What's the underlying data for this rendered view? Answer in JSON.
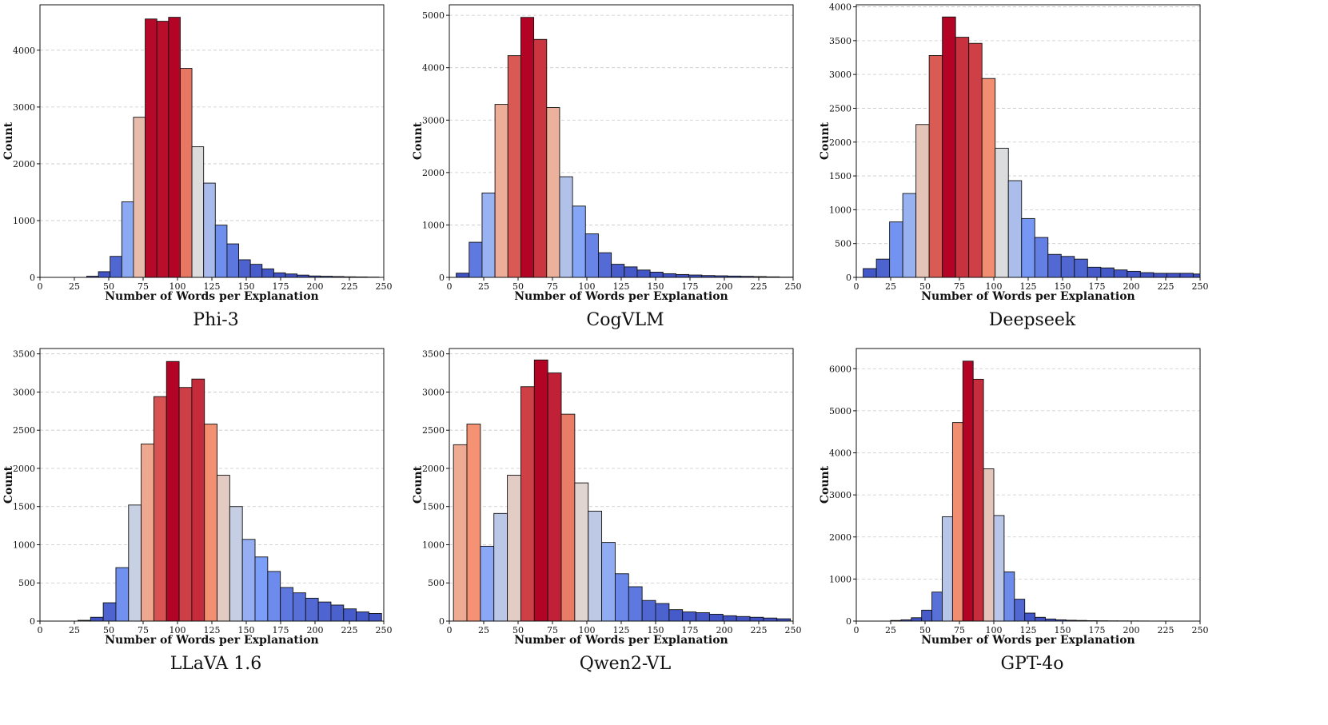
{
  "chart_data": [
    {
      "type": "bar",
      "title": "Phi-3",
      "xlabel": "Number of Words per Explanation",
      "ylabel": "Count",
      "xlim": [
        0,
        250
      ],
      "ylim": [
        0,
        4800
      ],
      "xticks": [
        0,
        25,
        50,
        75,
        100,
        125,
        150,
        175,
        200,
        225,
        250
      ],
      "yticks": [
        0,
        1000,
        2000,
        3000,
        4000
      ],
      "bin_width": 8.5,
      "bin_starts": [
        0,
        8.5,
        17,
        25.5,
        34,
        42.5,
        51,
        59.5,
        68,
        76.5,
        85,
        93.5,
        102,
        110.5,
        119,
        127.5,
        136,
        144.5,
        153,
        161.5,
        170,
        178.5,
        187,
        195.5,
        204,
        212.5,
        221,
        229.5,
        238
      ],
      "values": [
        0,
        0,
        0,
        0,
        20,
        100,
        370,
        1330,
        2820,
        4550,
        4510,
        4580,
        3680,
        2300,
        1660,
        920,
        590,
        310,
        230,
        150,
        80,
        60,
        40,
        25,
        20,
        15,
        10,
        8,
        5
      ]
    },
    {
      "type": "bar",
      "title": "CogVLM",
      "xlabel": "Number of Words per Explanation",
      "ylabel": "Count",
      "xlim": [
        0,
        250
      ],
      "ylim": [
        0,
        5200
      ],
      "xticks": [
        0,
        25,
        50,
        75,
        100,
        125,
        150,
        175,
        200,
        225,
        250
      ],
      "yticks": [
        0,
        1000,
        2000,
        3000,
        4000,
        5000
      ],
      "bin_width": 9.4,
      "bin_starts": [
        5,
        14.4,
        23.8,
        33.2,
        42.6,
        52,
        61.4,
        70.8,
        80.2,
        89.6,
        99,
        108.4,
        117.8,
        127.2,
        136.6,
        146,
        155.4,
        164.8,
        174.2,
        183.6,
        193,
        202.4,
        211.8,
        221.2,
        230.6,
        240
      ],
      "values": [
        80,
        670,
        1610,
        3300,
        4230,
        4960,
        4540,
        3240,
        1920,
        1360,
        830,
        470,
        250,
        200,
        140,
        100,
        70,
        55,
        45,
        35,
        30,
        25,
        20,
        15,
        10,
        5
      ]
    },
    {
      "type": "bar",
      "title": "Deepseek",
      "xlabel": "Number of Words per Explanation",
      "ylabel": "Count",
      "xlim": [
        0,
        250
      ],
      "ylim": [
        0,
        4030
      ],
      "xticks": [
        0,
        25,
        50,
        75,
        100,
        125,
        150,
        175,
        200,
        225,
        250
      ],
      "yticks": [
        0,
        500,
        1000,
        1500,
        2000,
        2500,
        3000,
        3500,
        4000
      ],
      "bin_width": 9.6,
      "bin_starts": [
        5,
        14.6,
        24.2,
        33.8,
        43.4,
        53,
        62.6,
        72.2,
        81.8,
        91.4,
        101,
        110.6,
        120.2,
        129.8,
        139.4,
        149,
        158.6,
        168.2,
        177.8,
        187.4,
        197,
        206.6,
        216.2,
        225.8,
        235.4,
        245
      ],
      "values": [
        130,
        270,
        820,
        1240,
        2260,
        3280,
        3850,
        3550,
        3460,
        2940,
        1910,
        1430,
        870,
        590,
        340,
        310,
        270,
        150,
        140,
        110,
        90,
        70,
        60,
        60,
        60,
        50
      ]
    },
    {
      "type": "bar",
      "title": "LLaVA 1.6",
      "xlabel": "Number of Words per Explanation",
      "ylabel": "Count",
      "xlim": [
        0,
        250
      ],
      "ylim": [
        0,
        3570
      ],
      "xticks": [
        0,
        25,
        50,
        75,
        100,
        125,
        150,
        175,
        200,
        225,
        250
      ],
      "yticks": [
        0,
        500,
        1000,
        1500,
        2000,
        2500,
        3000,
        3500
      ],
      "bin_width": 9.2,
      "bin_starts": [
        0,
        9.2,
        18.4,
        27.6,
        36.8,
        46,
        55.2,
        64.4,
        73.6,
        82.8,
        92,
        101.2,
        110.4,
        119.6,
        128.8,
        138,
        147.2,
        156.4,
        165.6,
        174.8,
        184,
        193.2,
        202.4,
        211.6,
        220.8,
        230,
        239.2
      ],
      "values": [
        0,
        0,
        0,
        10,
        50,
        240,
        700,
        1520,
        2320,
        2940,
        3400,
        3060,
        3170,
        2580,
        1910,
        1500,
        1070,
        840,
        650,
        440,
        370,
        300,
        250,
        210,
        160,
        120,
        100
      ]
    },
    {
      "type": "bar",
      "title": "Qwen2-VL",
      "xlabel": "Number of Words per Explanation",
      "ylabel": "Count",
      "xlim": [
        0,
        250
      ],
      "ylim": [
        0,
        3570
      ],
      "xticks": [
        0,
        25,
        50,
        75,
        100,
        125,
        150,
        175,
        200,
        225,
        250
      ],
      "yticks": [
        0,
        500,
        1000,
        1500,
        2000,
        2500,
        3000,
        3500
      ],
      "bin_width": 9.8,
      "bin_starts": [
        3,
        12.8,
        22.6,
        32.4,
        42.2,
        52,
        61.8,
        71.6,
        81.4,
        91.2,
        101,
        110.8,
        120.6,
        130.4,
        140.2,
        150,
        159.8,
        169.6,
        179.4,
        189.2,
        199,
        208.8,
        218.6,
        228.4,
        238.2
      ],
      "values": [
        2310,
        2580,
        980,
        1410,
        1910,
        3070,
        3420,
        3250,
        2710,
        1810,
        1440,
        1030,
        620,
        450,
        270,
        230,
        150,
        120,
        110,
        90,
        70,
        60,
        50,
        40,
        30
      ]
    },
    {
      "type": "bar",
      "title": "GPT-4o",
      "xlabel": "Number of Words per Explanation",
      "ylabel": "Count",
      "xlim": [
        0,
        250
      ],
      "ylim": [
        0,
        6480
      ],
      "xticks": [
        0,
        25,
        50,
        75,
        100,
        125,
        150,
        175,
        200,
        225,
        250
      ],
      "yticks": [
        0,
        1000,
        2000,
        3000,
        4000,
        5000,
        6000
      ],
      "bin_width": 7.5,
      "bin_starts": [
        25,
        32.5,
        40,
        47.5,
        55,
        62.5,
        70,
        77.5,
        85,
        92.5,
        100,
        107.5,
        115,
        122.5,
        130,
        137.5,
        145,
        152.5,
        160,
        167.5,
        175,
        182.5,
        190,
        197.5,
        205,
        212.5,
        220,
        227.5,
        235,
        242.5
      ],
      "values": [
        15,
        30,
        80,
        260,
        690,
        2480,
        4720,
        6180,
        5750,
        3620,
        2510,
        1170,
        520,
        190,
        90,
        50,
        30,
        20,
        15,
        10,
        8,
        6,
        5,
        4,
        3,
        2,
        2,
        1,
        1,
        1
      ]
    }
  ]
}
